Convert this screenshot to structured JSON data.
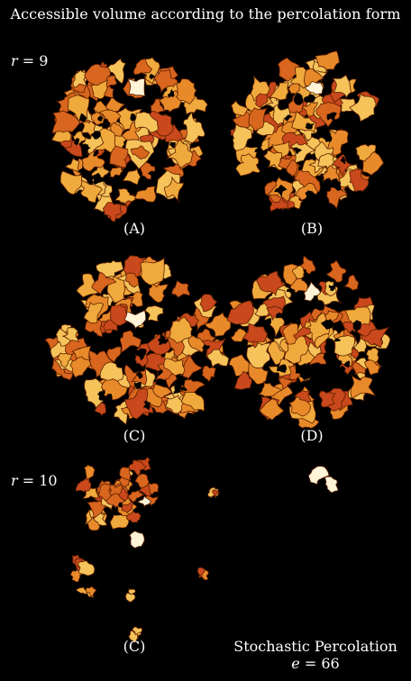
{
  "title": "Accessible volume according to the percolation form",
  "row_labels": {
    "r9": {
      "var": "r",
      "op": "=",
      "num": "9"
    },
    "r10": {
      "var": "r",
      "op": "=",
      "num": "10"
    }
  },
  "panels": {
    "A": "(A)",
    "B": "(B)",
    "C1": "(C)",
    "D": "(D)",
    "C2": "(C)"
  },
  "footer": {
    "method": "Stochastic Percolation",
    "e_var": "e",
    "e_op": "=",
    "e_value": "66"
  },
  "palette": {
    "background": "#000000",
    "outline": "#5a1e00",
    "fills": [
      "#f0a93c",
      "#e88a2a",
      "#d9661e",
      "#c9481c",
      "#f5c35a",
      "#fbe0a0",
      "#fff4d8"
    ]
  }
}
